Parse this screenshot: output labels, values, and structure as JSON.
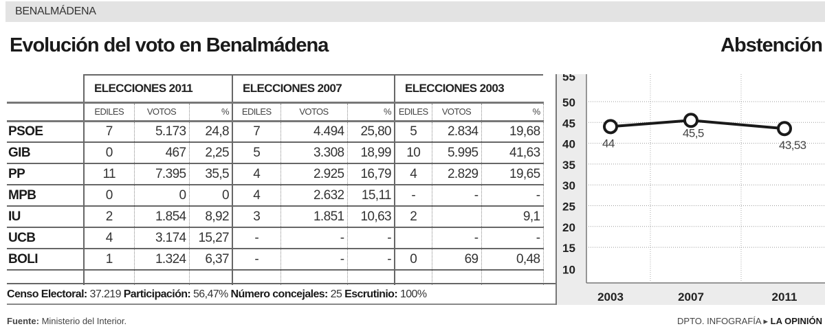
{
  "section": "BENALMÁDENA",
  "title": "Evolución del voto en Benalmádena",
  "chart_title": "Abstención",
  "table": {
    "groups": [
      "ELECCIONES 2011",
      "ELECCIONES 2007",
      "ELECCIONES 2003"
    ],
    "subheaders": [
      "EDILES",
      "VOTOS",
      "%"
    ],
    "rows": [
      {
        "party": "PSOE",
        "v": [
          "7",
          "5.173",
          "24,8",
          "7",
          "4.494",
          "25,80",
          "5",
          "2.834",
          "19,68"
        ]
      },
      {
        "party": "GIB",
        "v": [
          "0",
          "467",
          "2,25",
          "5",
          "3.308",
          "18,99",
          "10",
          "5.995",
          "41,63"
        ]
      },
      {
        "party": "PP",
        "v": [
          "11",
          "7.395",
          "35,5",
          "4",
          "2.925",
          "16,79",
          "4",
          "2.829",
          "19,65"
        ]
      },
      {
        "party": "MPB",
        "v": [
          "0",
          "0",
          "0",
          "4",
          "2.632",
          "15,11",
          "-",
          "-",
          "-"
        ]
      },
      {
        "party": "IU",
        "v": [
          "2",
          "1.854",
          "8,92",
          "3",
          "1.851",
          "10,63",
          "2",
          "",
          "9,1"
        ]
      },
      {
        "party": "UCB",
        "v": [
          "4",
          "3.174",
          "15,27",
          "-",
          "-",
          "-",
          "",
          "-",
          "-"
        ]
      },
      {
        "party": "BOLI",
        "v": [
          "1",
          "1.324",
          "6,37",
          "-",
          "-",
          "-",
          "0",
          "69",
          "0,48"
        ]
      }
    ]
  },
  "summary": {
    "censo_label": "Censo Electoral:",
    "censo": "37.219",
    "part_label": "Participación:",
    "part": "56,47%",
    "conc_label": "Número concejales:",
    "conc": "25",
    "escr_label": "Escrutinio:",
    "escr": "100%"
  },
  "source_label": "Fuente:",
  "source": "Ministerio del Interior.",
  "credit": "DPTO. INFOGRAFÍA",
  "credit_brand": "LA OPINIÓN",
  "chart_data": {
    "type": "line",
    "title": "Abstención",
    "categories": [
      "2003",
      "2007",
      "2011"
    ],
    "values": [
      44,
      45.5,
      43.53
    ],
    "labels": [
      "44",
      "45,5",
      "43,53"
    ],
    "yticks": [
      55,
      50,
      45,
      40,
      35,
      30,
      25,
      20,
      15,
      10
    ],
    "ylim": [
      8,
      58
    ],
    "grid": true,
    "color": "#1a1a1a"
  }
}
